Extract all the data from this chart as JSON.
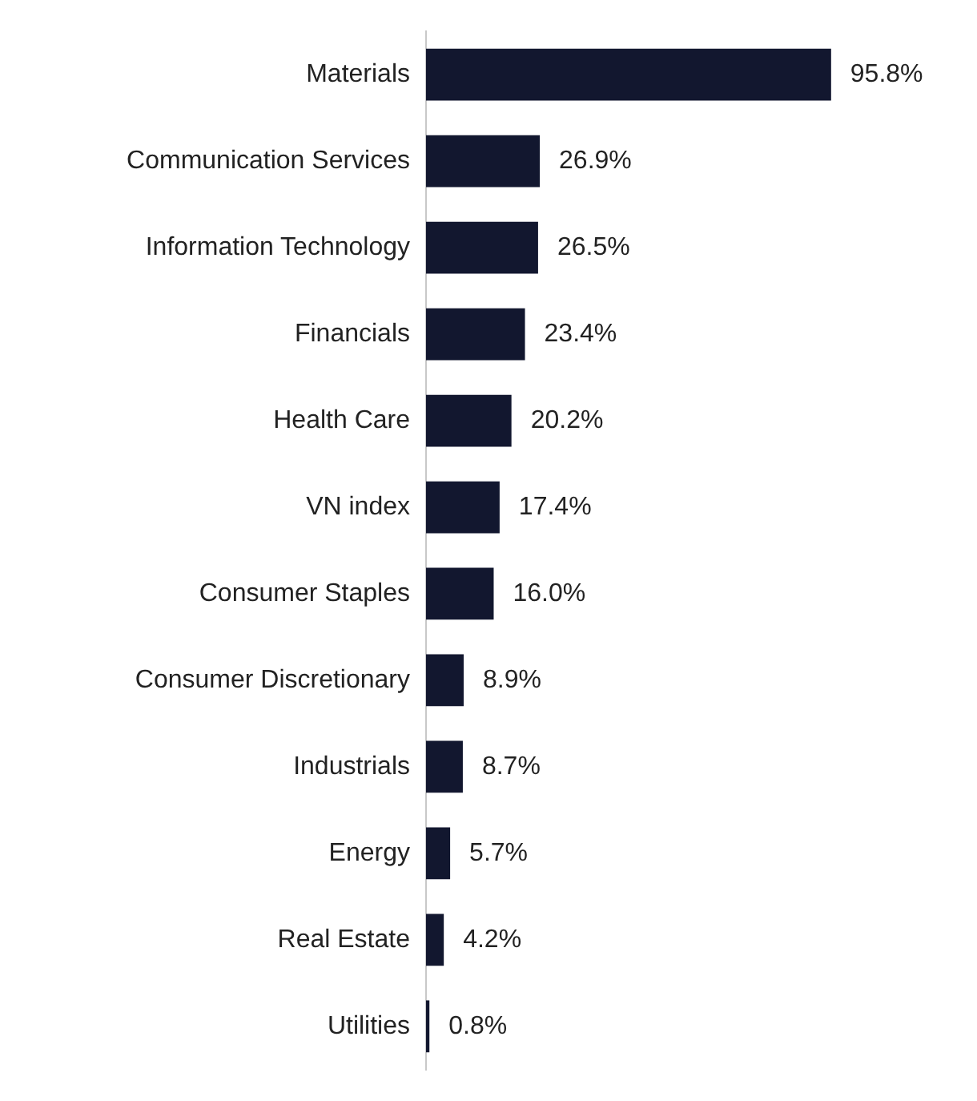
{
  "chart_data": {
    "type": "bar",
    "orientation": "horizontal",
    "categories": [
      "Materials",
      "Communication Services",
      "Information Technology",
      "Financials",
      "Health Care",
      "VN index",
      "Consumer Staples",
      "Consumer Discretionary",
      "Industrials",
      "Energy",
      "Real Estate",
      "Utilities"
    ],
    "values": [
      95.8,
      26.9,
      26.5,
      23.4,
      20.2,
      17.4,
      16.0,
      8.9,
      8.7,
      5.7,
      4.2,
      0.8
    ],
    "value_labels": [
      "95.8%",
      "26.9%",
      "26.5%",
      "23.4%",
      "20.2%",
      "17.4%",
      "16.0%",
      "8.9%",
      "8.7%",
      "5.7%",
      "4.2%",
      "0.8%"
    ],
    "color": "#12172f",
    "tick_labels": "y",
    "grid": false,
    "legend": false
  }
}
